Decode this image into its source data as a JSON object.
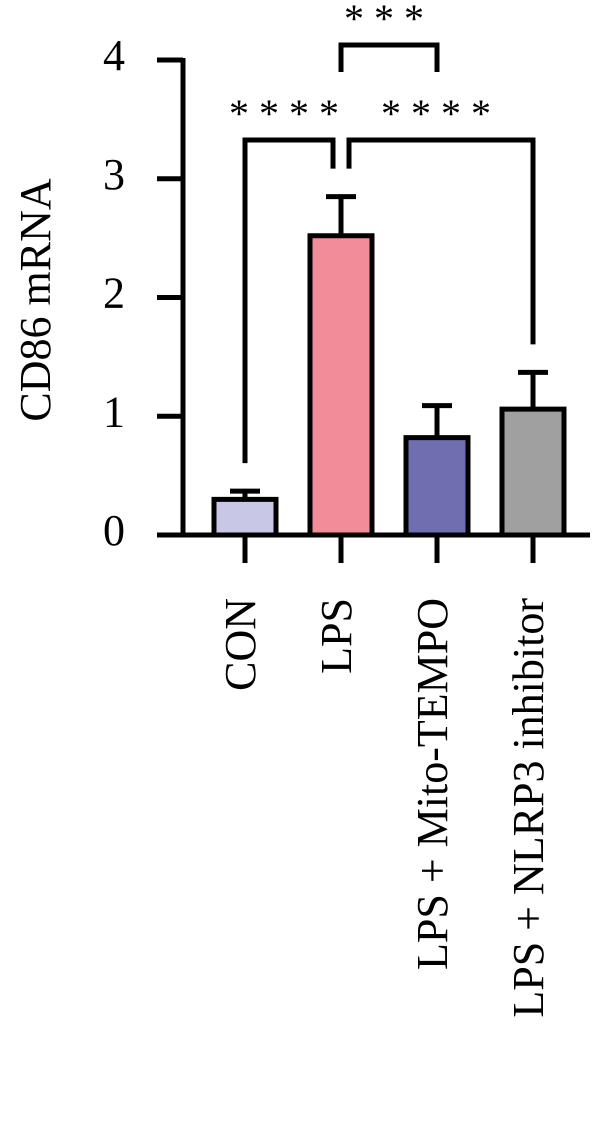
{
  "chart_data": {
    "type": "bar",
    "ylabel": "CD86 mRNA",
    "categories": [
      "CON",
      "LPS",
      "LPS + Mito-TEMPO",
      "LPS + NLRP3 inhibitor"
    ],
    "values": [
      0.3,
      2.52,
      0.82,
      1.06
    ],
    "errors": [
      0.07,
      0.33,
      0.27,
      0.31
    ],
    "colors": [
      "#c8c8e6",
      "#f28c98",
      "#6e6eb0",
      "#a0a0a0"
    ],
    "ylim": [
      0,
      4
    ],
    "yticks": [
      0,
      1,
      2,
      3,
      4
    ],
    "annotations": [
      {
        "label": "****",
        "groups": [
          "CON",
          "LPS"
        ]
      },
      {
        "label": "****",
        "groups": [
          "LPS",
          "LPS + NLRP3 inhibitor"
        ]
      },
      {
        "label": "***",
        "groups": [
          "LPS",
          "LPS + Mito-TEMPO"
        ]
      }
    ]
  }
}
